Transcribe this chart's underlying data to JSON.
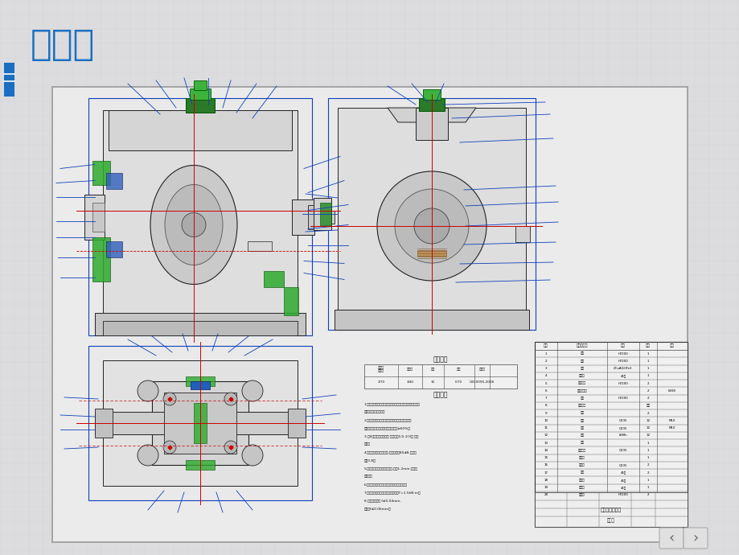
{
  "title": "装配图",
  "title_color": "#1B6EC2",
  "title_fontsize": 32,
  "slide_bg": "#DCDCDE",
  "drawing_bg": "#EBEBEB",
  "drawing_border": "#888888",
  "blue_bar_color": "#1B6EC2",
  "arrow_color": "#1040BB",
  "red_color": "#CC0000",
  "green_color": "#228B22",
  "green2_color": "#3CB371",
  "dark_line": "#222222",
  "mid_line": "#444444",
  "body_fill": "#D8D8D8",
  "body_fill2": "#C8C8C8",
  "white_fill": "#F0F0F0"
}
